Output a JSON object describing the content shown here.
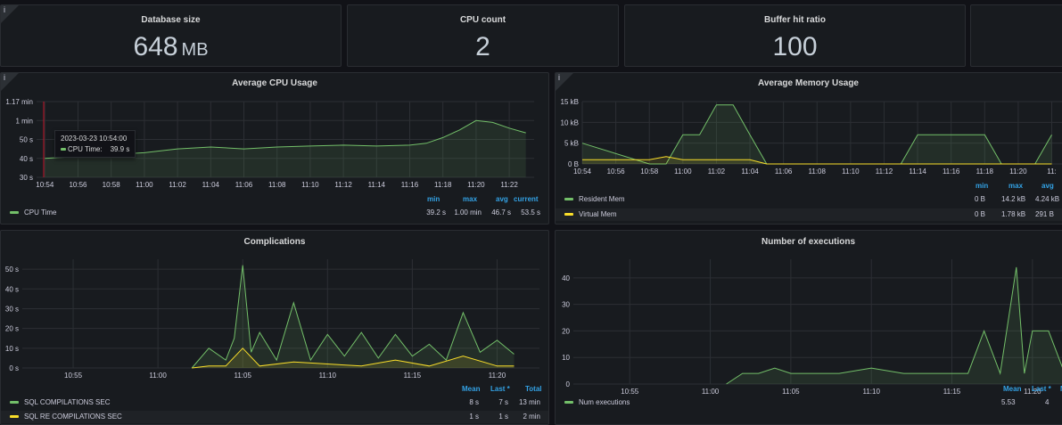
{
  "stats": [
    {
      "title": "Database size",
      "value": "648",
      "unit": "MB"
    },
    {
      "title": "CPU count",
      "value": "2",
      "unit": ""
    },
    {
      "title": "Buffer hit ratio",
      "value": "100",
      "unit": ""
    }
  ],
  "info_glyph": "i",
  "cpu_panel": {
    "title": "Average CPU Usage",
    "y_ticks": [
      "1.17 min",
      "1 min",
      "50 s",
      "40 s",
      "30 s"
    ],
    "x_ticks": [
      "10:54",
      "10:56",
      "10:58",
      "11:00",
      "11:02",
      "11:04",
      "11:06",
      "11:08",
      "11:10",
      "11:12",
      "11:14",
      "11:16",
      "11:18",
      "11:20",
      "11:22"
    ],
    "legend_headers": [
      "min",
      "max",
      "avg",
      "current"
    ],
    "series": [
      {
        "name": "CPU Time",
        "color": "#73bf69",
        "values": [
          "39.2 s",
          "1.00 min",
          "46.7 s",
          "53.5 s"
        ]
      }
    ],
    "tooltip": {
      "time": "2023-03-23 10:54:00",
      "label": "CPU Time:",
      "value": "39.9 s"
    }
  },
  "mem_panel": {
    "title": "Average Memory Usage",
    "y_ticks": [
      "15 kB",
      "10 kB",
      "5 kB",
      "0 B"
    ],
    "x_ticks": [
      "10:54",
      "10:56",
      "10:58",
      "11:00",
      "11:02",
      "11:04",
      "11:06",
      "11:08",
      "11:10",
      "11:12",
      "11:14",
      "11:16",
      "11:18",
      "11:20",
      "11:"
    ],
    "legend_headers": [
      "min",
      "max",
      "avg"
    ],
    "series": [
      {
        "name": "Resident Mem",
        "color": "#73bf69",
        "values": [
          "0 B",
          "14.2 kB",
          "4.24 kB"
        ]
      },
      {
        "name": "Virtual Mem",
        "color": "#fade2a",
        "values": [
          "0 B",
          "1.78 kB",
          "291 B"
        ]
      }
    ]
  },
  "comp_panel": {
    "title": "Complications",
    "y_ticks": [
      "50 s",
      "40 s",
      "30 s",
      "20 s",
      "10 s",
      "0 s"
    ],
    "x_ticks": [
      "10:55",
      "11:00",
      "11:05",
      "11:10",
      "11:15",
      "11:20"
    ],
    "legend_headers": [
      "Mean",
      "Last *",
      "Total"
    ],
    "series": [
      {
        "name": "SQL COMPILATIONS SEC",
        "color": "#73bf69",
        "values": [
          "8 s",
          "7 s",
          "13 min"
        ]
      },
      {
        "name": "SQL RE COMPILATIONS SEC",
        "color": "#fade2a",
        "values": [
          "1 s",
          "1 s",
          "2 min"
        ]
      }
    ]
  },
  "exec_panel": {
    "title": "Number of executions",
    "y_ticks": [
      "40",
      "30",
      "20",
      "10",
      "0"
    ],
    "x_ticks": [
      "10:55",
      "11:00",
      "11:05",
      "11:10",
      "11:15",
      "11:20"
    ],
    "legend_headers": [
      "Mean",
      "Last *",
      "M"
    ],
    "series": [
      {
        "name": "Num executions",
        "color": "#73bf69",
        "values": [
          "5.53",
          "4"
        ]
      }
    ]
  },
  "chart_data": [
    {
      "type": "line",
      "title": "Average CPU Usage",
      "series": [
        {
          "name": "CPU Time",
          "x": [
            "10:54",
            "10:56",
            "10:58",
            "11:00",
            "11:01",
            "11:02",
            "11:04",
            "11:06",
            "11:08",
            "11:10",
            "11:12",
            "11:14",
            "11:16",
            "11:17",
            "11:18",
            "11:19",
            "11:20",
            "11:21",
            "11:22",
            "11:23"
          ],
          "y": [
            40,
            41,
            42,
            43,
            44,
            45,
            46,
            45,
            46,
            46.5,
            47,
            46.5,
            47,
            48,
            51,
            55,
            60,
            59,
            56,
            53.5
          ]
        }
      ],
      "ylim": [
        30,
        70
      ]
    },
    {
      "type": "area",
      "title": "Average Memory Usage",
      "series": [
        {
          "name": "Resident Mem",
          "x": [
            "10:54",
            "10:58",
            "10:59",
            "11:00",
            "11:01",
            "11:02",
            "11:03",
            "11:04",
            "11:05",
            "11:13",
            "11:14",
            "11:15",
            "11:16",
            "11:17",
            "11:18",
            "11:19",
            "11:21",
            "11:22"
          ],
          "y": [
            5,
            0,
            0,
            7,
            7,
            14.2,
            14.2,
            7,
            0,
            0,
            7,
            7,
            7,
            7,
            7,
            0,
            0,
            7
          ]
        },
        {
          "name": "Virtual Mem",
          "x": [
            "10:54",
            "10:58",
            "10:59",
            "11:00",
            "11:04",
            "11:05",
            "11:22"
          ],
          "y": [
            1,
            1,
            1.78,
            1,
            1,
            0,
            0
          ]
        }
      ],
      "ylim": [
        0,
        15
      ]
    },
    {
      "type": "line",
      "title": "Complications",
      "series": [
        {
          "name": "SQL COMPILATIONS SEC",
          "x": [
            "11:02",
            "11:03",
            "11:04",
            "11:04:30",
            "11:05",
            "11:05:30",
            "11:06",
            "11:07",
            "11:08",
            "11:09",
            "11:10",
            "11:11",
            "11:12",
            "11:13",
            "11:14",
            "11:15",
            "11:16",
            "11:17",
            "11:18",
            "11:19",
            "11:20",
            "11:21"
          ],
          "y": [
            0,
            10,
            4,
            15,
            52,
            8,
            18,
            4,
            33,
            4,
            17,
            6,
            18,
            5,
            17,
            6,
            12,
            4,
            28,
            8,
            14,
            7
          ]
        },
        {
          "name": "SQL RE COMPILATIONS SEC",
          "x": [
            "11:02",
            "11:03",
            "11:04",
            "11:05",
            "11:06",
            "11:08",
            "11:12",
            "11:14",
            "11:16",
            "11:18",
            "11:20",
            "11:21"
          ],
          "y": [
            0,
            1,
            1,
            10,
            1,
            3,
            1,
            4,
            1,
            6,
            1,
            1
          ]
        }
      ],
      "ylim": [
        0,
        55
      ]
    },
    {
      "type": "line",
      "title": "Number of executions",
      "series": [
        {
          "name": "Num executions",
          "x": [
            "11:01",
            "11:02",
            "11:03",
            "11:04",
            "11:05",
            "11:08",
            "11:10",
            "11:12",
            "11:14",
            "11:16",
            "11:17",
            "11:18",
            "11:19",
            "11:19:30",
            "11:20",
            "11:21",
            "11:22"
          ],
          "y": [
            0,
            4,
            4,
            6,
            4,
            4,
            6,
            4,
            4,
            4,
            20,
            4,
            44,
            4,
            20,
            20,
            4
          ]
        }
      ],
      "ylim": [
        0,
        47
      ]
    }
  ]
}
